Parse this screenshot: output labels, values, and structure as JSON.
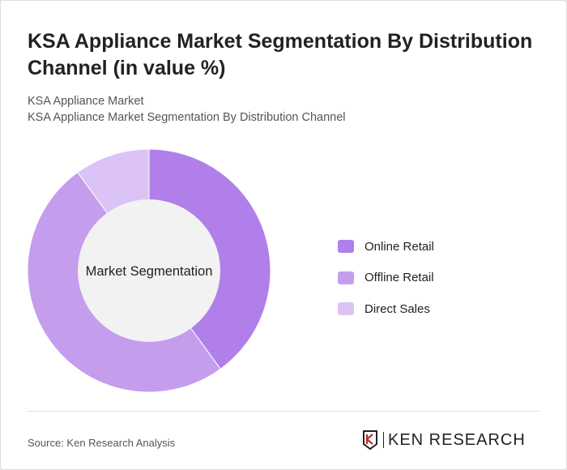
{
  "title": "KSA Appliance Market Segmentation By Distribution Channel (in value %)",
  "subtitle1": "KSA Appliance Market",
  "subtitle2": "KSA Appliance Market Segmentation By Distribution Channel",
  "source": "Source: Ken Research Analysis",
  "logo_text": "KEN RESEARCH",
  "chart_data": {
    "type": "pie",
    "donut": true,
    "center_label": "Market Segmentation",
    "legend_position": "right",
    "categories": [
      "Online Retail",
      "Offline Retail",
      "Direct Sales"
    ],
    "values": [
      40,
      50,
      10
    ],
    "colors": [
      "#b07fea",
      "#c59ded",
      "#dcc3f5"
    ]
  }
}
